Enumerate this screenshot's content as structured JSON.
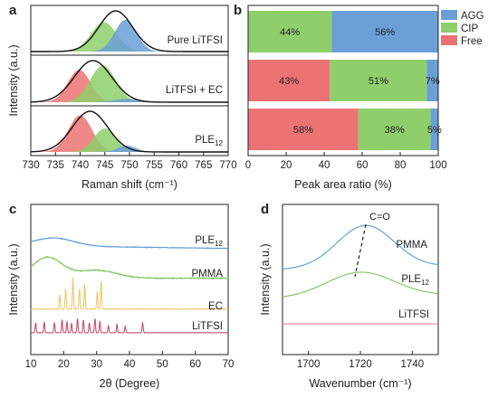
{
  "chart_data": [
    {
      "panel": "a",
      "type": "area",
      "xlabel": "Raman shift (cm⁻¹)",
      "ylabel": "Intensity (a.u.)",
      "xlim": [
        730,
        770
      ],
      "xticks": [
        730,
        735,
        740,
        745,
        750,
        755,
        760,
        765,
        770
      ],
      "stack": [
        {
          "label": "Pure LiTFSI",
          "fit": [
            {
              "center": 744.8,
              "width": 2.6,
              "height": 0.72,
              "color": "#8ecf6b"
            },
            {
              "center": 749.2,
              "width": 2.2,
              "height": 0.78,
              "color": "#6b9fd6"
            }
          ],
          "envelope": {
            "center": 747.2,
            "width": 3.4,
            "height": 1.0
          }
        },
        {
          "label": "LiTFSI + EC",
          "fit": [
            {
              "center": 739.8,
              "width": 2.3,
              "height": 0.78,
              "color": "#ec7373"
            },
            {
              "center": 744.6,
              "width": 2.6,
              "height": 0.88,
              "color": "#8ecf6b"
            },
            {
              "center": 749.5,
              "width": 2.5,
              "height": 0.08,
              "color": "#6b9fd6"
            }
          ],
          "envelope": {
            "center": 742.6,
            "width": 3.8,
            "height": 1.0
          }
        },
        {
          "label_main": "PLE",
          "label_sub": "12",
          "fit": [
            {
              "center": 740.0,
              "width": 2.4,
              "height": 0.9,
              "color": "#ec7373"
            },
            {
              "center": 745.0,
              "width": 2.2,
              "height": 0.58,
              "color": "#8ecf6b"
            },
            {
              "center": 749.5,
              "width": 1.8,
              "height": 0.16,
              "color": "#6b9fd6"
            }
          ],
          "envelope": {
            "center": 742.0,
            "width": 3.6,
            "height": 1.0
          }
        }
      ]
    },
    {
      "panel": "b",
      "type": "bar",
      "xlabel": "Peak area ratio (%)",
      "xlim": [
        0,
        100
      ],
      "xticks": [
        0,
        20,
        40,
        60,
        80,
        100
      ],
      "series": [
        {
          "name": "AGG",
          "color": "#6b9fd6"
        },
        {
          "name": "CIP",
          "color": "#8ecf6b"
        },
        {
          "name": "Free",
          "color": "#ec7373"
        }
      ],
      "bars": [
        {
          "Free": 0,
          "CIP": 44,
          "AGG": 56,
          "labels": [
            "44%",
            "56%"
          ]
        },
        {
          "Free": 43,
          "CIP": 51,
          "AGG": 7,
          "labels": [
            "43%",
            "51%",
            "7%"
          ]
        },
        {
          "Free": 58,
          "CIP": 38,
          "AGG": 5,
          "labels": [
            "58%",
            "38%",
            "5%"
          ]
        }
      ]
    },
    {
      "panel": "c",
      "type": "line",
      "xlabel": "2θ (Degree)",
      "ylabel": "Intensity (a.u.)",
      "xlim": [
        10,
        70
      ],
      "xticks": [
        10,
        20,
        30,
        40,
        50,
        60,
        70
      ],
      "series": [
        {
          "label_main": "PLE",
          "label_sub": "12",
          "color": "#5b9bd5",
          "offset": 0.0,
          "humps": [
            {
              "center": 17,
              "width": 6,
              "height": 0.28
            }
          ]
        },
        {
          "label_main": "PMMA",
          "label_sub": "",
          "color": "#7cc25a",
          "offset": 0.0,
          "humps": [
            {
              "center": 15,
              "width": 4.5,
              "height": 0.52
            },
            {
              "center": 30,
              "width": 6,
              "height": 0.2
            }
          ]
        },
        {
          "label_main": "EC",
          "label_sub": "",
          "color": "#f2c76b",
          "offset": 0.0,
          "peaks": [
            18.8,
            20.6,
            22.8,
            24.8,
            26.4,
            30.2,
            31.4
          ]
        },
        {
          "label_main": "LiTFSI",
          "label_sub": "",
          "color": "#c7506f",
          "offset": 0.0,
          "peaks": [
            11.5,
            14.1,
            17.2,
            19.5,
            21.0,
            22.4,
            24.2,
            26.0,
            27.8,
            29.5,
            31.0,
            33.6,
            36.2,
            38.7,
            44.0
          ]
        }
      ]
    },
    {
      "panel": "d",
      "type": "line",
      "xlabel": "Wavenumber (cm⁻¹)",
      "ylabel": "Intensity (a.u.)",
      "xlim": [
        1690,
        1750
      ],
      "xticks": [
        1700,
        1720,
        1740
      ],
      "annotation": "C=O",
      "series": [
        {
          "label_main": "PMMA",
          "label_sub": "",
          "color": "#5b9bd5",
          "peak": 1722,
          "width": 11,
          "height": 0.6
        },
        {
          "label_main": "PLE",
          "label_sub": "12",
          "color": "#7cc25a",
          "peak": 1720,
          "width": 13,
          "height": 0.35
        },
        {
          "label_main": "LiTFSI",
          "label_sub": "",
          "color": "#ec7373",
          "peak": null,
          "width": 0,
          "height": 0
        }
      ]
    }
  ]
}
